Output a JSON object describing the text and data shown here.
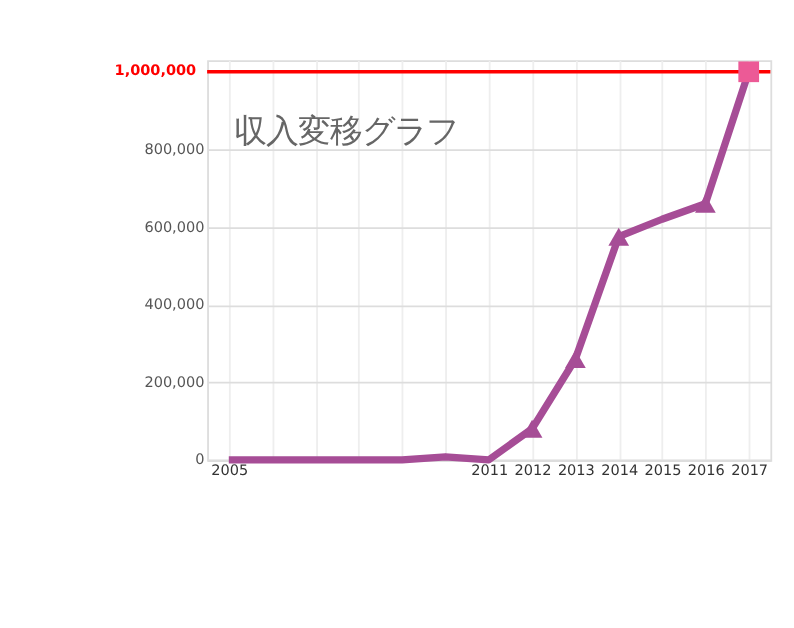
{
  "chart_data": {
    "type": "line",
    "title": "収入変移グラフ",
    "categories": [
      "2005",
      null,
      null,
      null,
      null,
      null,
      "2011",
      "2012",
      "2013",
      "2014",
      "2015",
      "2016",
      "2017"
    ],
    "series": [
      {
        "color": "#a64d96",
        "marker": "none",
        "values": [
          0,
          0,
          0,
          0,
          0,
          8000,
          0,
          80000,
          260000,
          575000,
          620000,
          660000,
          1000000
        ]
      },
      {
        "type": "scatter",
        "color": "#a64d96",
        "marker": "triangle",
        "values": [
          null,
          null,
          null,
          null,
          null,
          null,
          null,
          80000,
          260000,
          575000,
          null,
          660000,
          null
        ]
      },
      {
        "type": "scatter",
        "color": "#ec5a96",
        "marker": "square",
        "values": [
          null,
          null,
          null,
          null,
          null,
          null,
          null,
          null,
          null,
          null,
          null,
          null,
          1000000
        ]
      }
    ],
    "ylim": [
      0,
      1030000
    ],
    "yticks": [
      0,
      {
        "value": 200000,
        "label": "200,000"
      },
      {
        "value": 400000,
        "label": "400,000"
      },
      {
        "value": 600000,
        "label": "600,000"
      },
      {
        "value": 800000,
        "label": "800,000"
      }
    ],
    "ref_lines": [
      {
        "axis": "y",
        "value": 1000000,
        "label": "1,000,000",
        "color": "#ff0000"
      }
    ],
    "grid": true
  }
}
